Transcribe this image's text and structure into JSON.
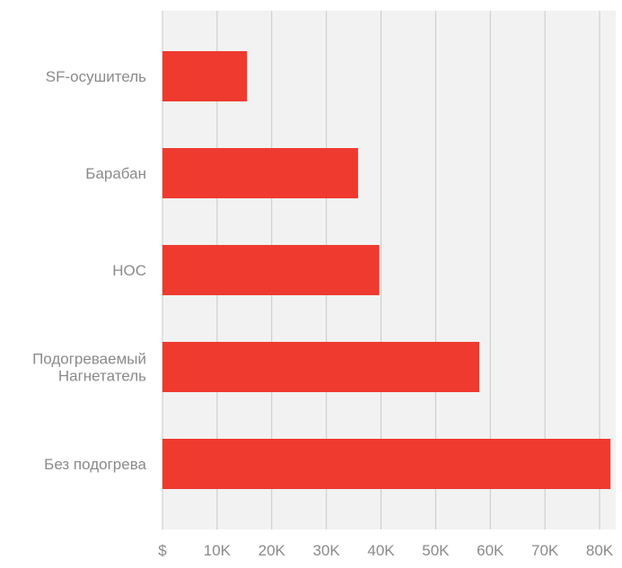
{
  "chart_data": {
    "type": "bar",
    "orientation": "horizontal",
    "categories": [
      "SF-осушитель",
      "Барабан",
      "НОС",
      "Подогреваемый Нагнетатель",
      "Без подогрева"
    ],
    "category_lines": [
      [
        "SF-осушитель"
      ],
      [
        "Барабан"
      ],
      [
        "НОС"
      ],
      [
        "Подогреваемый",
        "Нагнетатель"
      ],
      [
        "Без подогрева"
      ]
    ],
    "values": [
      15500,
      35800,
      39700,
      58000,
      82000
    ],
    "xlim": [
      0,
      84000
    ],
    "x_ticks": [
      0,
      10000,
      20000,
      30000,
      40000,
      50000,
      60000,
      70000,
      80000
    ],
    "x_tick_labels": [
      "$",
      "10K",
      "20K",
      "30K",
      "40K",
      "50K",
      "60K",
      "70K",
      "80K"
    ],
    "title": "",
    "xlabel": "",
    "ylabel": "",
    "grid": "vertical",
    "legend": "none",
    "colors": {
      "bar": "#ef3a2f",
      "plot_bg": "#f2f2f2",
      "grid": "#c8c8c8",
      "text": "#8a8a8a"
    }
  }
}
